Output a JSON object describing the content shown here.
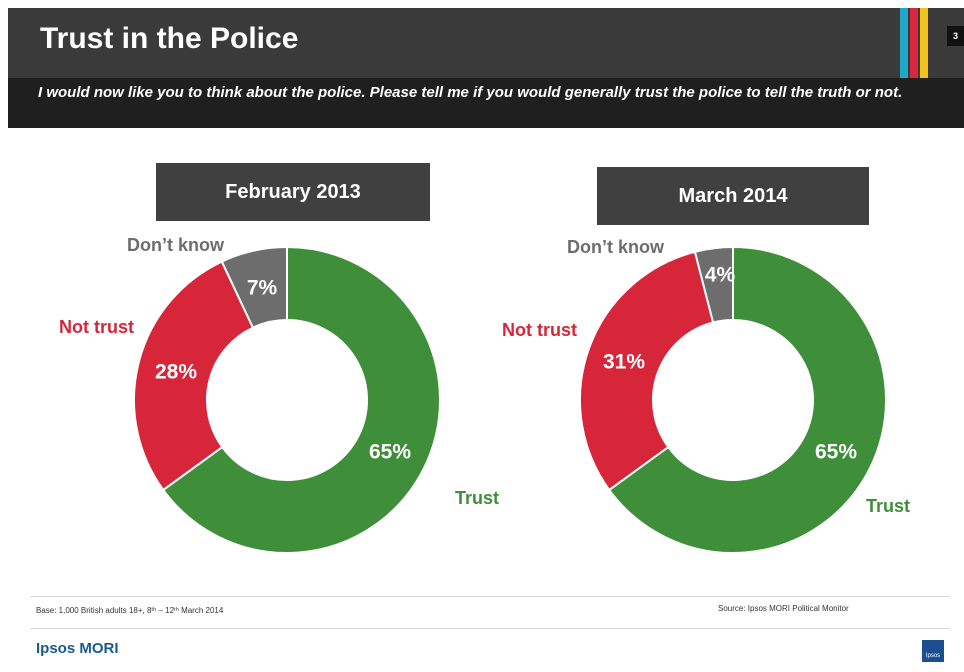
{
  "header": {
    "title": "Trust in the Police",
    "subtitle": "I would now like you to think about the police. Please tell me if you would generally trust the police to tell the truth or not.",
    "slide_number": "3",
    "stripe_colors": [
      "#1fa7c9",
      "#d7263d",
      "#f2c21b"
    ]
  },
  "colors": {
    "trust": "#3f8f3a",
    "not_trust": "#d72639",
    "dont_know": "#6d6d6d",
    "label_trust": "#3f8f3a",
    "label_not_trust": "#d72639",
    "label_dont_know": "#6d6d6d"
  },
  "chart_data": [
    {
      "type": "pie",
      "title": "February 2013",
      "slices": [
        {
          "label": "Trust",
          "value": 65,
          "value_label": "65%"
        },
        {
          "label": "Not trust",
          "value": 28,
          "value_label": "28%"
        },
        {
          "label": "Don’t know",
          "value": 7,
          "value_label": "7%"
        }
      ]
    },
    {
      "type": "pie",
      "title": "March 2014",
      "slices": [
        {
          "label": "Trust",
          "value": 65,
          "value_label": "65%"
        },
        {
          "label": "Not trust",
          "value": 31,
          "value_label": "31%"
        },
        {
          "label": "Don’t know",
          "value": 4,
          "value_label": "4%"
        }
      ]
    }
  ],
  "footer": {
    "base": "Base: 1,000 British adults 18+, 8ᵗʰ – 12ᵗʰ March 2014",
    "source": "Source: Ipsos MORI Political Monitor",
    "brand": "Ipsos MORI",
    "logo_text": "Ipsos"
  }
}
